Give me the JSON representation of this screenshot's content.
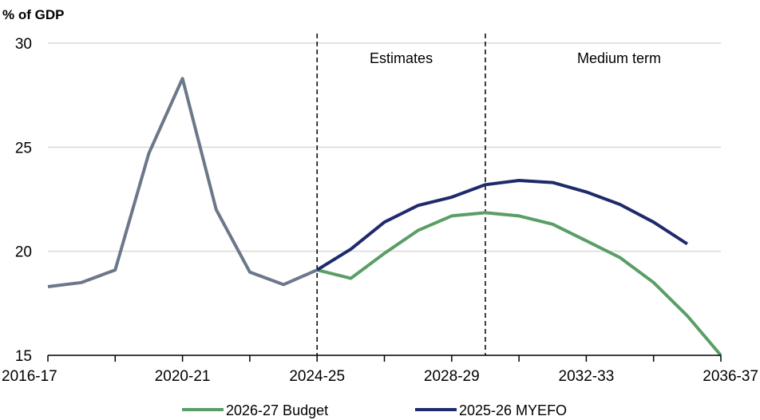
{
  "chart_data": {
    "type": "line",
    "unit_label": "% of GDP",
    "x": [
      "2016-17",
      "2017-18",
      "2018-19",
      "2019-20",
      "2020-21",
      "2021-22",
      "2022-23",
      "2023-24",
      "2024-25",
      "2025-26",
      "2026-27",
      "2027-28",
      "2028-29",
      "2029-30",
      "2030-31",
      "2031-32",
      "2032-33",
      "2033-34",
      "2034-35",
      "2035-36",
      "2036-37"
    ],
    "x_tick_labels": [
      "2016-17",
      "2020-21",
      "2024-25",
      "2028-29",
      "2032-33",
      "2036-37"
    ],
    "y_ticks": [
      15,
      20,
      25,
      30
    ],
    "ylim": [
      15,
      30
    ],
    "grid": true,
    "legend_position": "bottom",
    "regions": [
      {
        "label": "Estimates",
        "from": "2024-25",
        "to": "2029-30"
      },
      {
        "label": "Medium term",
        "from": "2029-30",
        "to": "2036-37"
      }
    ],
    "series": [
      {
        "name": "",
        "color": "#6b778a",
        "values": [
          18.3,
          18.5,
          19.1,
          24.7,
          28.3,
          22.0,
          19.0,
          18.4,
          19.1,
          null,
          null,
          null,
          null,
          null,
          null,
          null,
          null,
          null,
          null,
          null,
          null
        ]
      },
      {
        "name": "2026-27 Budget",
        "color": "#5a9e66",
        "values": [
          null,
          null,
          null,
          null,
          null,
          null,
          null,
          null,
          19.1,
          18.7,
          19.9,
          21.0,
          21.7,
          21.85,
          21.7,
          21.3,
          20.5,
          19.7,
          18.5,
          16.9,
          15.0
        ]
      },
      {
        "name": "2025-26 MYEFO",
        "color": "#1f2a6b",
        "values": [
          null,
          null,
          null,
          null,
          null,
          null,
          null,
          null,
          19.1,
          20.1,
          21.4,
          22.2,
          22.6,
          23.2,
          23.4,
          23.3,
          22.85,
          22.25,
          21.4,
          20.35,
          null
        ]
      }
    ]
  }
}
